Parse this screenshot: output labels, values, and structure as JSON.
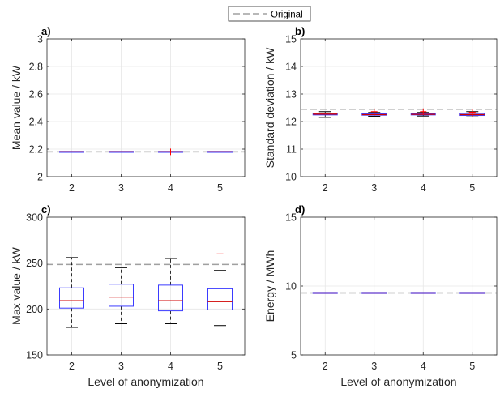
{
  "legend": {
    "label": "Original",
    "color": "#a0a0a0"
  },
  "xlabel": "Level of anonymization",
  "colors": {
    "box": "#3b3bff",
    "median": "#d00000",
    "outlier": "#ff0000",
    "whisker": "#000000",
    "grid": "#e6e6e6",
    "original": "#a0a0a0"
  },
  "chart_data": [
    {
      "type": "box",
      "panel_label": "a)",
      "xlabel": "",
      "ylabel": "Mean value / kW",
      "categories": [
        "2",
        "3",
        "4",
        "5"
      ],
      "ylim": [
        2,
        3
      ],
      "yticks": [
        "2",
        "2.2",
        "2.4",
        "2.6",
        "2.8",
        "3"
      ],
      "grid": true,
      "original": 2.18,
      "boxes": [
        {
          "category": "2",
          "whislo": 2.18,
          "q1": 2.18,
          "med": 2.18,
          "q3": 2.18,
          "whishi": 2.18,
          "outliers": []
        },
        {
          "category": "3",
          "whislo": 2.18,
          "q1": 2.18,
          "med": 2.18,
          "q3": 2.18,
          "whishi": 2.18,
          "outliers": []
        },
        {
          "category": "4",
          "whislo": 2.18,
          "q1": 2.18,
          "med": 2.18,
          "q3": 2.18,
          "whishi": 2.18,
          "outliers": [
            2.18
          ]
        },
        {
          "category": "5",
          "whislo": 2.18,
          "q1": 2.18,
          "med": 2.18,
          "q3": 2.18,
          "whishi": 2.18,
          "outliers": []
        }
      ]
    },
    {
      "type": "box",
      "panel_label": "b)",
      "xlabel": "",
      "ylabel": "Standard deviation / kW",
      "categories": [
        "2",
        "3",
        "4",
        "5"
      ],
      "ylim": [
        10,
        15
      ],
      "yticks": [
        "10",
        "11",
        "12",
        "13",
        "14",
        "15"
      ],
      "grid": true,
      "original": 12.45,
      "boxes": [
        {
          "category": "2",
          "whislo": 12.15,
          "q1": 12.24,
          "med": 12.27,
          "q3": 12.3,
          "whishi": 12.36,
          "outliers": []
        },
        {
          "category": "3",
          "whislo": 12.19,
          "q1": 12.23,
          "med": 12.25,
          "q3": 12.28,
          "whishi": 12.33,
          "outliers": [
            12.36
          ]
        },
        {
          "category": "4",
          "whislo": 12.2,
          "q1": 12.24,
          "med": 12.26,
          "q3": 12.28,
          "whishi": 12.33,
          "outliers": [
            12.36
          ]
        },
        {
          "category": "5",
          "whislo": 12.17,
          "q1": 12.22,
          "med": 12.25,
          "q3": 12.29,
          "whishi": 12.36,
          "outliers": [
            12.3,
            12.32,
            12.34
          ]
        }
      ]
    },
    {
      "type": "box",
      "panel_label": "c)",
      "xlabel": "Level of anonymization",
      "ylabel": "Max value / kW",
      "categories": [
        "2",
        "3",
        "4",
        "5"
      ],
      "ylim": [
        150,
        300
      ],
      "yticks": [
        "150",
        "200",
        "250",
        "300"
      ],
      "grid": true,
      "original": 248.5,
      "boxes": [
        {
          "category": "2",
          "whislo": 180,
          "q1": 201,
          "med": 209,
          "q3": 223,
          "whishi": 256,
          "outliers": []
        },
        {
          "category": "3",
          "whislo": 184,
          "q1": 203,
          "med": 213,
          "q3": 227,
          "whishi": 245,
          "outliers": []
        },
        {
          "category": "4",
          "whislo": 184,
          "q1": 198,
          "med": 209,
          "q3": 226,
          "whishi": 255,
          "outliers": []
        },
        {
          "category": "5",
          "whislo": 182,
          "q1": 199,
          "med": 208,
          "q3": 222,
          "whishi": 242,
          "outliers": [
            260
          ]
        }
      ]
    },
    {
      "type": "box",
      "panel_label": "d)",
      "xlabel": "Level of anonymization",
      "ylabel": "Energy / MWh",
      "categories": [
        "2",
        "3",
        "4",
        "5"
      ],
      "ylim": [
        5,
        15
      ],
      "yticks": [
        "5",
        "10",
        "15"
      ],
      "grid": true,
      "original": 9.5,
      "boxes": [
        {
          "category": "2",
          "whislo": 9.5,
          "q1": 9.5,
          "med": 9.5,
          "q3": 9.5,
          "whishi": 9.5,
          "outliers": []
        },
        {
          "category": "3",
          "whislo": 9.5,
          "q1": 9.5,
          "med": 9.5,
          "q3": 9.5,
          "whishi": 9.5,
          "outliers": []
        },
        {
          "category": "4",
          "whislo": 9.5,
          "q1": 9.5,
          "med": 9.5,
          "q3": 9.5,
          "whishi": 9.5,
          "outliers": []
        },
        {
          "category": "5",
          "whislo": 9.5,
          "q1": 9.5,
          "med": 9.5,
          "q3": 9.5,
          "whishi": 9.5,
          "outliers": []
        }
      ]
    }
  ]
}
